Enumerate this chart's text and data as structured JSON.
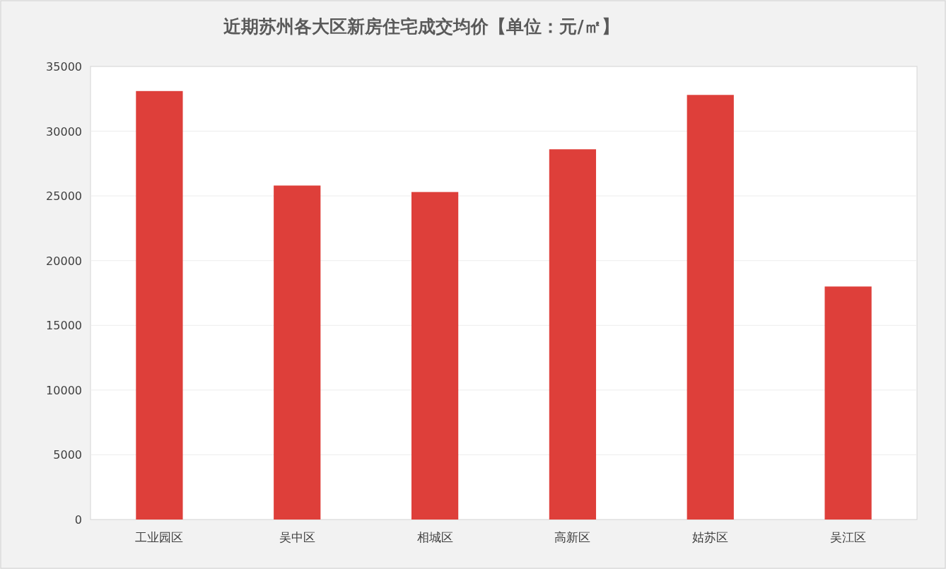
{
  "chart_data": {
    "type": "bar",
    "title": "近期苏州各大区新房住宅成交均价【单位：元/㎡】",
    "categories": [
      "工业园区",
      "吴中区",
      "相城区",
      "高新区",
      "姑苏区",
      "吴江区"
    ],
    "values": [
      33100,
      25800,
      25300,
      28600,
      32800,
      18000
    ],
    "color": "#de3f3a",
    "ylim": [
      0,
      35000
    ],
    "yticks": [
      0,
      5000,
      10000,
      15000,
      20000,
      25000,
      30000,
      35000
    ],
    "grid": "y"
  }
}
